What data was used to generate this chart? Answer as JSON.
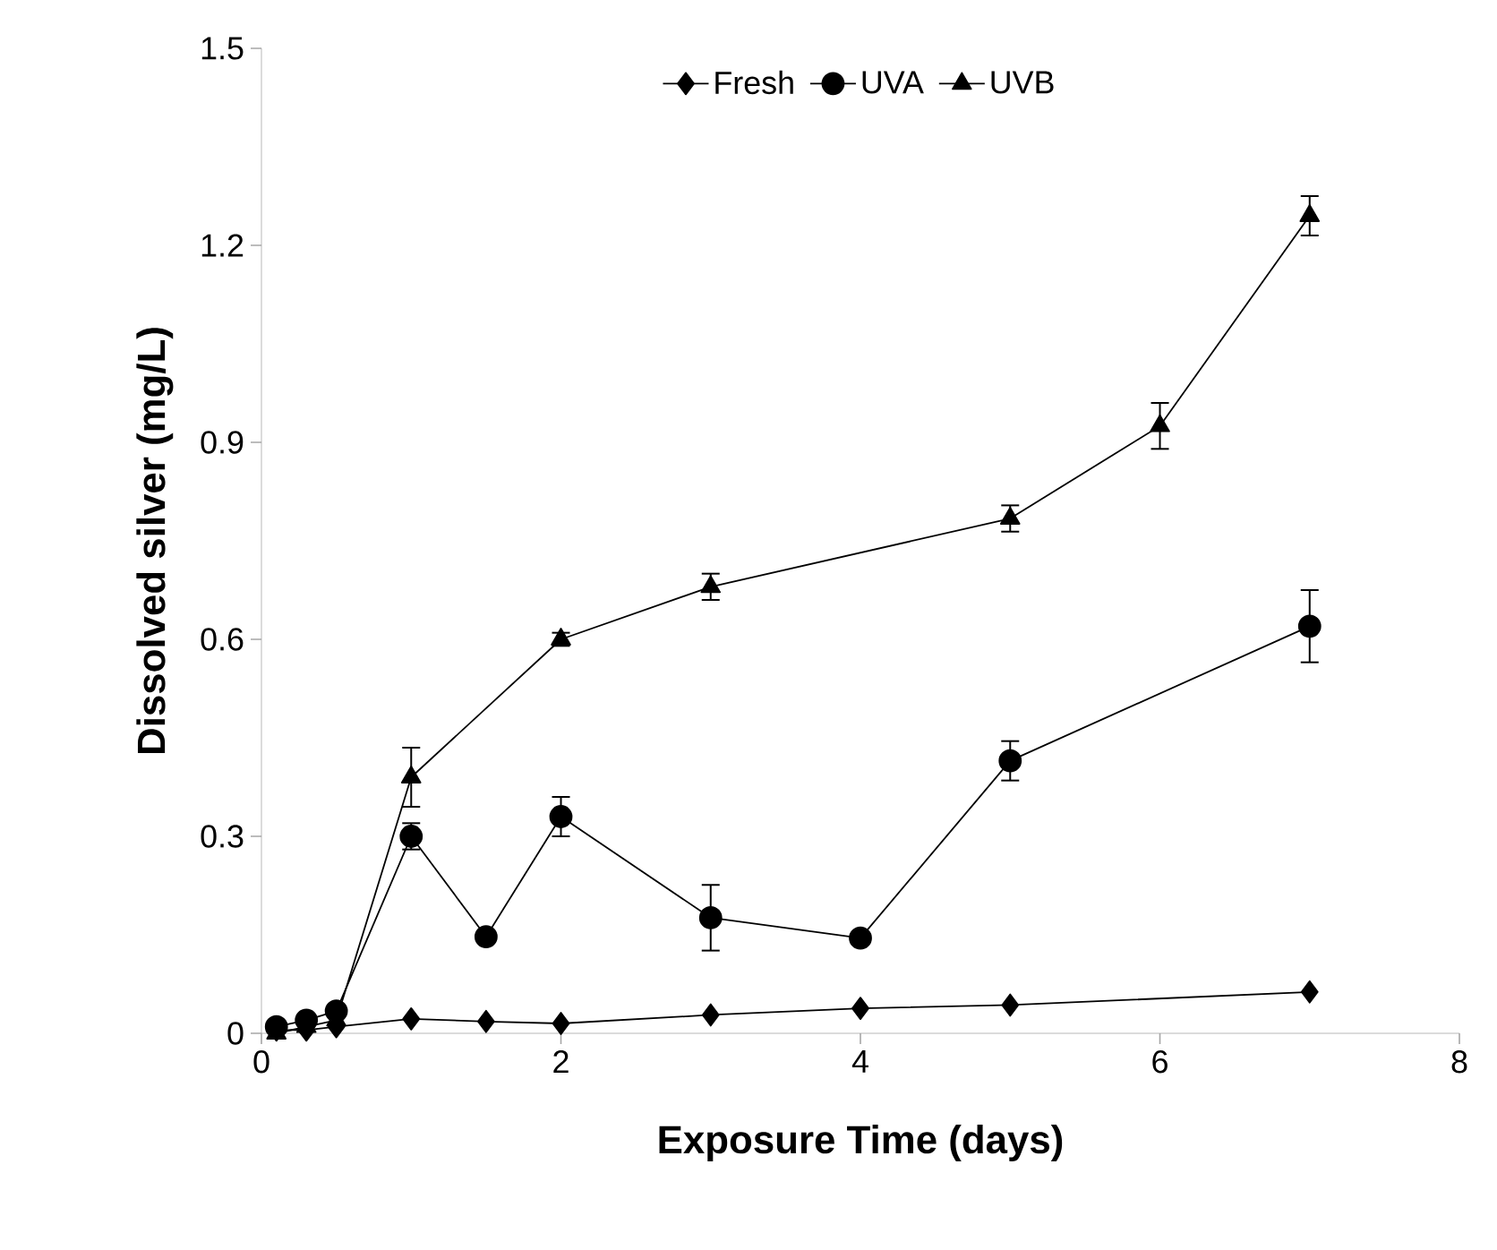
{
  "chart_data": {
    "type": "line",
    "xlabel": "Exposure Time (days)",
    "ylabel": "Dissolved silver (mg/L)",
    "xlim": [
      0,
      8
    ],
    "xticks": [
      0,
      2,
      4,
      6,
      8
    ],
    "ylim": [
      0,
      1.5
    ],
    "yticks": [
      0,
      0.3,
      0.6,
      0.9,
      1.2,
      1.5
    ],
    "legend": "top",
    "grid": false,
    "line_style": "solid",
    "series": [
      {
        "name": "Fresh",
        "color": "#000000",
        "marker": "diamond",
        "x": [
          0.1,
          0.3,
          0.5,
          1,
          1.5,
          2,
          3,
          4,
          5,
          7
        ],
        "values": [
          0.005,
          0.005,
          0.01,
          0.022,
          0.018,
          0.015,
          0.028,
          0.038,
          0.043,
          0.063
        ]
      },
      {
        "name": "UVA",
        "color": "#000000",
        "marker": "circle",
        "x": [
          0.1,
          0.3,
          0.5,
          1,
          1.5,
          2,
          3,
          4,
          5,
          7
        ],
        "values": [
          0.01,
          0.02,
          0.034,
          0.3,
          0.147,
          0.33,
          0.176,
          0.145,
          0.415,
          0.62
        ],
        "errors": [
          null,
          null,
          null,
          0.02,
          null,
          0.03,
          0.05,
          null,
          0.03,
          0.055
        ]
      },
      {
        "name": "UVB",
        "color": "#000000",
        "marker": "triangle",
        "x": [
          0.1,
          0.3,
          0.5,
          1,
          2,
          3,
          5,
          6,
          7
        ],
        "values": [
          0.0,
          0.01,
          0.02,
          0.39,
          0.6,
          0.68,
          0.784,
          0.925,
          1.245
        ],
        "errors": [
          null,
          null,
          null,
          0.045,
          0.01,
          0.02,
          0.02,
          0.035,
          0.03
        ]
      }
    ]
  }
}
